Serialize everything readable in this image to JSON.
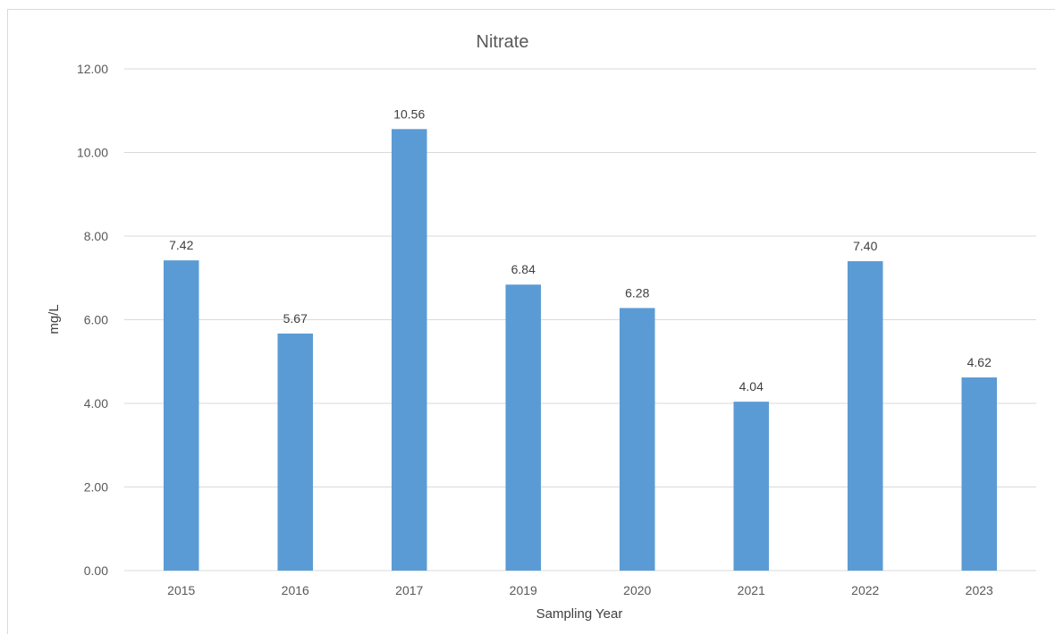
{
  "chart_data": {
    "type": "bar",
    "title": "Nitrate",
    "xlabel": "Sampling Year",
    "ylabel": "mg/L",
    "categories": [
      "2015",
      "2016",
      "2017",
      "2019",
      "2020",
      "2021",
      "2022",
      "2023"
    ],
    "values": [
      7.42,
      5.67,
      10.56,
      6.84,
      6.28,
      4.04,
      7.4,
      4.62
    ],
    "data_labels": [
      "7.42",
      "5.67",
      "10.56",
      "6.84",
      "6.28",
      "4.04",
      "7.40",
      "4.62"
    ],
    "y_ticks": [
      "0.00",
      "2.00",
      "4.00",
      "6.00",
      "8.00",
      "10.00",
      "12.00"
    ],
    "ylim": [
      0,
      12
    ],
    "grid": true,
    "legend": "none",
    "bar_color": "#5b9bd5",
    "grid_color": "#d9d9d9"
  }
}
